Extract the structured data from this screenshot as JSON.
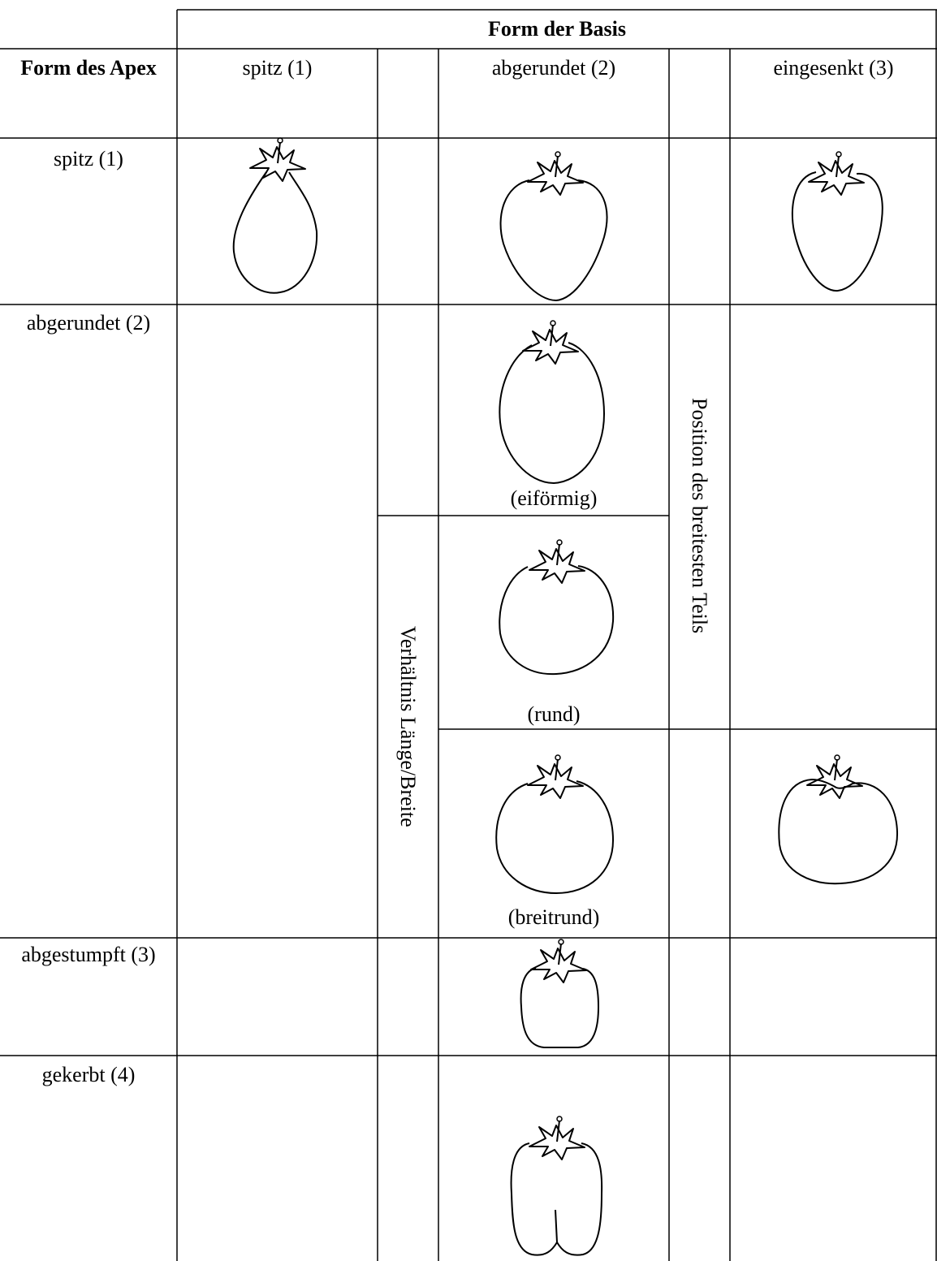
{
  "header": {
    "title": "Form der Basis",
    "row_header": "Form des Apex",
    "columns": [
      "spitz (1)",
      "abgerundet (2)",
      "eingesenkt (3)"
    ]
  },
  "rows": [
    "spitz (1)",
    "abgerundet (2)",
    "abgestumpft (3)",
    "gekerbt (4)"
  ],
  "shapes": [
    "(eiförmig)",
    "(rund)",
    "(breitrund)"
  ],
  "axes": {
    "ratio": "Verhältnis Länge/Breite",
    "position": "Position des breitesten Teils"
  }
}
